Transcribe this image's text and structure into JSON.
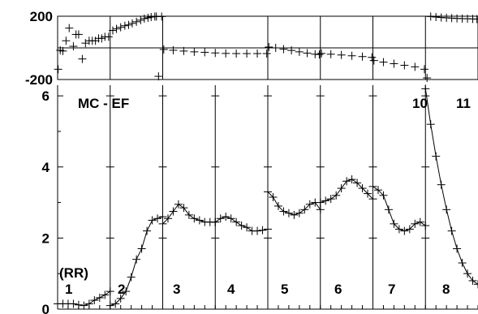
{
  "chart_data": [
    {
      "type": "scatter",
      "panel": "top",
      "title": "",
      "xlabel": "",
      "ylabel": "",
      "ylim": [
        -200,
        200
      ],
      "yticks": [
        -200,
        200
      ],
      "xlim": [
        0,
        800
      ],
      "segment_boundaries": [
        100,
        200,
        400,
        500,
        600,
        700
      ],
      "reference_line_y": 0,
      "segments": [
        {
          "x": [
            1,
            5,
            10,
            16,
            22,
            30,
            35,
            40,
            47,
            53,
            60,
            66,
            72,
            78,
            84,
            90,
            97
          ],
          "y": [
            -135,
            -15,
            -20,
            45,
            125,
            10,
            85,
            85,
            -70,
            30,
            45,
            45,
            45,
            60,
            60,
            70,
            70
          ]
        },
        {
          "x": [
            105,
            112,
            120,
            128,
            135,
            142,
            150,
            158,
            165,
            172,
            178,
            185,
            188,
            192,
            198
          ],
          "y": [
            110,
            120,
            130,
            140,
            145,
            155,
            165,
            175,
            185,
            190,
            195,
            198,
            198,
            -180,
            198
          ]
        },
        {
          "x": [
            202,
            220,
            240,
            260,
            280,
            300,
            320,
            340,
            360,
            380,
            398
          ],
          "y": [
            -10,
            -15,
            -20,
            -25,
            -28,
            -32,
            -35,
            -36,
            -36,
            -36,
            -36
          ]
        },
        {
          "x": [
            402,
            415,
            430,
            445,
            460,
            475,
            490,
            498
          ],
          "y": [
            5,
            0,
            -8,
            -16,
            -25,
            -33,
            -40,
            -42
          ]
        },
        {
          "x": [
            502,
            520,
            540,
            560,
            580,
            598
          ],
          "y": [
            -35,
            -40,
            -45,
            -50,
            -55,
            -60
          ]
        },
        {
          "x": [
            602,
            620,
            640,
            660,
            680,
            698
          ],
          "y": [
            -80,
            -90,
            -100,
            -110,
            -120,
            -135
          ]
        },
        {
          "x": [
            703,
            710,
            720,
            730,
            740,
            750,
            760,
            770,
            780,
            790,
            798
          ],
          "y": [
            -190,
            198,
            195,
            192,
            190,
            188,
            186,
            185,
            184,
            183,
            182
          ]
        }
      ]
    },
    {
      "type": "line",
      "panel": "bottom",
      "title": "",
      "xlabel": "",
      "ylabel": "",
      "ylim": [
        0,
        6.3
      ],
      "yticks": [
        0,
        2,
        4,
        6
      ],
      "xlim": [
        0,
        800
      ],
      "segment_boundaries": [
        100,
        200,
        300,
        400,
        500,
        600,
        700
      ],
      "series": [
        {
          "name": "",
          "x": [
            0,
            10,
            20,
            30,
            40,
            50,
            60,
            70,
            80,
            90,
            100
          ],
          "y": [
            0.15,
            0.15,
            0.15,
            0.15,
            0.12,
            0.1,
            0.15,
            0.25,
            0.32,
            0.4,
            0.5
          ]
        },
        {
          "name": "",
          "x": [
            100,
            110,
            120,
            130,
            140,
            150,
            160,
            170,
            180,
            190,
            200
          ],
          "y": [
            0.1,
            0.15,
            0.3,
            0.5,
            0.9,
            1.4,
            1.7,
            2.2,
            2.5,
            2.55,
            2.6
          ]
        },
        {
          "name": "",
          "x": [
            200,
            210,
            220,
            230,
            240,
            250,
            260,
            270,
            280,
            290,
            300
          ],
          "y": [
            2.4,
            2.55,
            2.75,
            2.95,
            2.85,
            2.65,
            2.55,
            2.5,
            2.45,
            2.45,
            2.45
          ]
        },
        {
          "name": "",
          "x": [
            300,
            310,
            320,
            330,
            340,
            350,
            360,
            370,
            380,
            390,
            400
          ],
          "y": [
            2.45,
            2.55,
            2.6,
            2.55,
            2.45,
            2.35,
            2.3,
            2.2,
            2.2,
            2.22,
            2.25
          ]
        },
        {
          "name": "",
          "x": [
            400,
            410,
            420,
            430,
            440,
            450,
            460,
            470,
            480,
            490,
            500
          ],
          "y": [
            3.3,
            3.15,
            2.9,
            2.75,
            2.7,
            2.65,
            2.7,
            2.8,
            2.95,
            3.0,
            2.8
          ]
        },
        {
          "name": "",
          "x": [
            500,
            510,
            520,
            530,
            540,
            550,
            560,
            570,
            580,
            590,
            600
          ],
          "y": [
            3.0,
            3.05,
            3.1,
            3.2,
            3.4,
            3.6,
            3.65,
            3.55,
            3.4,
            3.25,
            3.1
          ]
        },
        {
          "name": "",
          "x": [
            600,
            610,
            620,
            630,
            640,
            650,
            660,
            670,
            680,
            690,
            700
          ],
          "y": [
            3.45,
            3.35,
            3.2,
            2.8,
            2.4,
            2.25,
            2.2,
            2.25,
            2.4,
            2.45,
            2.35
          ]
        },
        {
          "name": "",
          "x": [
            700,
            710,
            720,
            730,
            740,
            750,
            760,
            770,
            780,
            790,
            800
          ],
          "y": [
            6.2,
            5.2,
            4.3,
            3.5,
            2.8,
            2.2,
            1.7,
            1.3,
            1.0,
            0.8,
            0.7
          ]
        }
      ]
    }
  ],
  "annotations": {
    "method": "MC - EF",
    "rr": "(RR)",
    "segment_numbers": [
      "1",
      "2",
      "3",
      "4",
      "5",
      "6",
      "7",
      "8"
    ],
    "top_right_numbers": [
      "10",
      "11"
    ]
  }
}
